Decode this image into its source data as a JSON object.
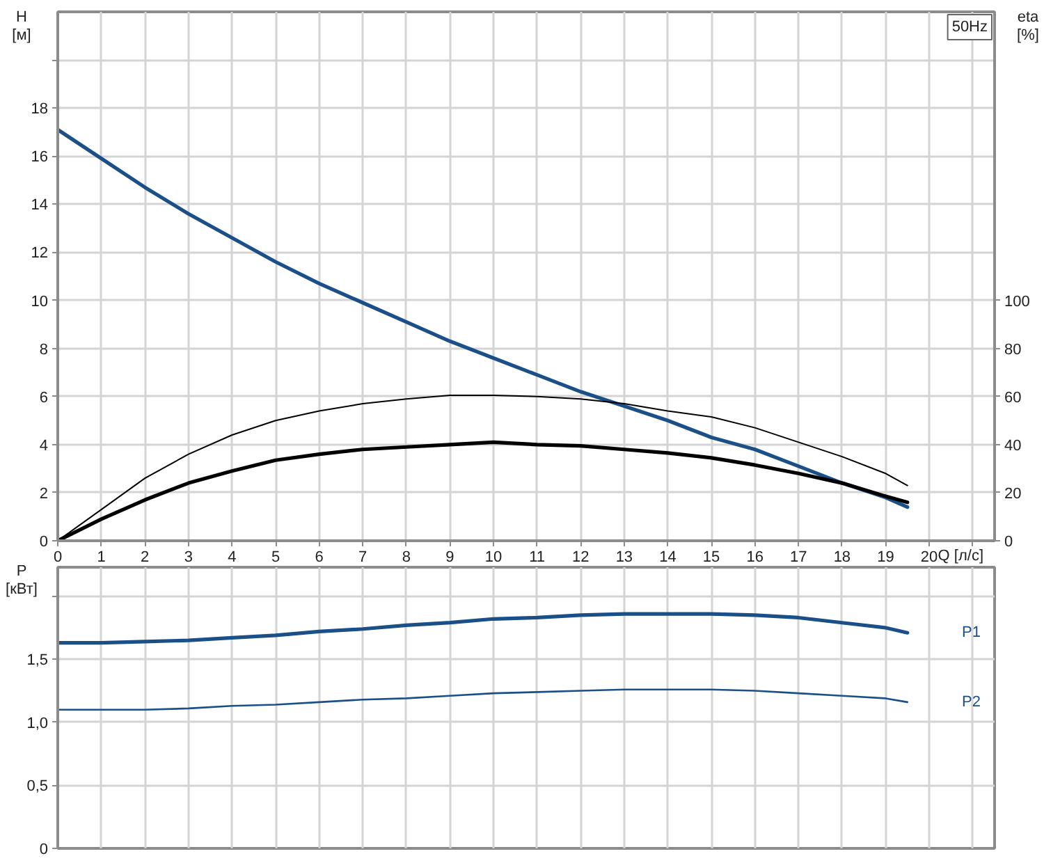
{
  "chart_data": [
    {
      "type": "line",
      "xlabel": "Q [л/с]",
      "ylabel": "H [м]",
      "y2label": "eta [%]",
      "annotations": [
        "50Hz"
      ],
      "x": [
        0,
        1,
        2,
        3,
        4,
        5,
        6,
        7,
        8,
        9,
        10,
        11,
        12,
        13,
        14,
        15,
        16,
        17,
        18,
        19,
        19.5
      ],
      "xlim": [
        0,
        21.5
      ],
      "xticks": [
        0,
        1,
        2,
        3,
        4,
        5,
        6,
        7,
        8,
        9,
        10,
        11,
        12,
        13,
        14,
        15,
        16,
        17,
        18,
        19,
        20,
        {
          "value": 21,
          "label": null
        }
      ],
      "ylim": [
        0,
        22
      ],
      "yticks": [
        0,
        2,
        4,
        6,
        8,
        10,
        12,
        14,
        16,
        18,
        {
          "value": 20,
          "label": null
        }
      ],
      "y2lim": [
        0,
        220
      ],
      "y2ticks": [
        0,
        20,
        40,
        60,
        80,
        100
      ],
      "grid": true,
      "series": [
        {
          "color": "#1b4f88",
          "values": [
            17.1,
            15.9,
            14.7,
            13.6,
            12.6,
            11.6,
            10.7,
            9.9,
            9.1,
            8.3,
            7.6,
            6.9,
            6.2,
            5.6,
            5.0,
            4.3,
            3.8,
            3.1,
            2.4,
            1.8,
            1.4
          ]
        },
        {
          "color": "#000000",
          "axis": "y2",
          "values": [
            0,
            13,
            26,
            36,
            44,
            50,
            54,
            57,
            59,
            60.5,
            60.5,
            60,
            59,
            57,
            54,
            51.5,
            47,
            41,
            35,
            28,
            23
          ]
        },
        {
          "color": "#000000",
          "axis": "y2",
          "values": [
            0,
            9,
            17,
            24,
            29,
            33.5,
            36,
            38,
            39,
            40,
            41,
            40,
            39.5,
            38,
            36.5,
            34.5,
            31.5,
            28,
            24,
            18.5,
            16
          ]
        }
      ]
    },
    {
      "type": "line",
      "ylabel": "P [кВт]",
      "x": [
        0,
        1,
        2,
        3,
        4,
        5,
        6,
        7,
        8,
        9,
        10,
        11,
        12,
        13,
        14,
        15,
        16,
        17,
        18,
        19,
        19.5
      ],
      "xlim": [
        0,
        21.5
      ],
      "xticks": [
        0,
        1,
        2,
        3,
        4,
        5,
        6,
        7,
        8,
        9,
        10,
        11,
        12,
        13,
        14,
        15,
        16,
        17,
        18,
        19,
        20,
        {
          "value": 21,
          "label": null
        }
      ],
      "ylim": [
        0,
        2.23
      ],
      "yticks": [
        0,
        {
          "value": 0.5,
          "label": "0,5"
        },
        {
          "value": 1,
          "label": "1,0"
        },
        {
          "value": 1.5,
          "label": "1,5"
        },
        {
          "value": 2,
          "label": null
        }
      ],
      "tick_labels": "y",
      "grid": true,
      "series": [
        {
          "name": "P1",
          "color": "#1b4f88",
          "values": [
            1.63,
            1.63,
            1.64,
            1.65,
            1.67,
            1.69,
            1.72,
            1.74,
            1.77,
            1.79,
            1.82,
            1.83,
            1.85,
            1.86,
            1.86,
            1.86,
            1.85,
            1.83,
            1.79,
            1.75,
            1.71
          ]
        },
        {
          "name": "P2",
          "color": "#1b4f88",
          "values": [
            1.1,
            1.1,
            1.1,
            1.11,
            1.13,
            1.14,
            1.16,
            1.18,
            1.19,
            1.21,
            1.23,
            1.24,
            1.25,
            1.26,
            1.26,
            1.26,
            1.25,
            1.23,
            1.21,
            1.19,
            1.16
          ]
        }
      ]
    }
  ]
}
